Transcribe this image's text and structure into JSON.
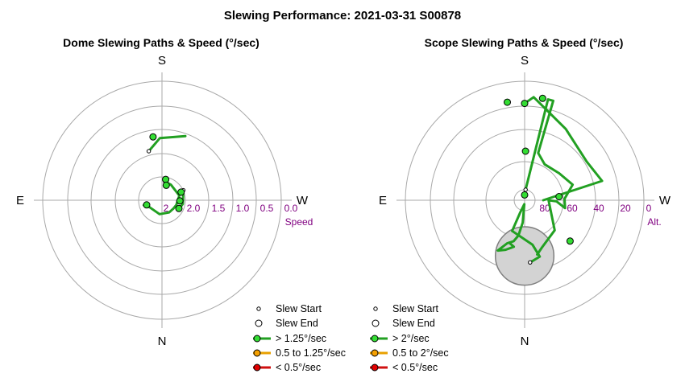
{
  "title": "Slewing Performance: 2021-03-31 S00878",
  "chart_data": [
    {
      "type": "polar-path",
      "title": "Dome Slewing Paths & Speed (°/sec)",
      "directions": {
        "top": "S",
        "bottom": "N",
        "left": "E",
        "right": "W"
      },
      "radial_ticks": [
        "2",
        "2.0",
        "1.5",
        "1.0",
        "0.5",
        "0.0"
      ],
      "radial_label": "Speed",
      "legend": [
        "Slew Start",
        "Slew End",
        "> 1.25°/sec",
        "0.5 to 1.25°/sec",
        "< 0.5°/sec"
      ],
      "speed_colors": {
        "fast": "#22a022",
        "medium": "#e8a000",
        "slow": "#d01010"
      },
      "paths": [
        {
          "speed_band": "fast",
          "points": [
            [
              165,
              1.92
            ],
            [
              178,
              1.68
            ],
            [
              200,
              1.55
            ]
          ]
        },
        {
          "speed_band": "fast",
          "points": [
            [
              190,
              2.6
            ],
            [
              210,
              2.62
            ],
            [
              255,
              2.62
            ],
            [
              288,
              2.68
            ],
            [
              305,
              2.7
            ],
            [
              330,
              2.7
            ],
            [
              10,
              2.7
            ],
            [
              60,
              2.7
            ],
            [
              75,
              2.6
            ]
          ]
        },
        {
          "speed_band": "fast",
          "points": [
            [
              245,
              2.5
            ],
            [
              280,
              2.55
            ],
            [
              300,
              2.6
            ]
          ]
        }
      ],
      "markers": [
        [
          172,
          1.64
        ],
        [
          190,
          2.55
        ],
        [
          196,
          2.67
        ],
        [
          247,
          2.56
        ],
        [
          272,
          2.62
        ],
        [
          296,
          2.6
        ],
        [
          73,
          2.66
        ]
      ]
    },
    {
      "type": "polar-path",
      "title": "Scope Slewing Paths & Speed (°/sec)",
      "directions": {
        "top": "S",
        "bottom": "N",
        "left": "E",
        "right": "W"
      },
      "radial_ticks": [
        "80",
        "60",
        "40",
        "20",
        "0"
      ],
      "radial_label": "Alt.",
      "legend": [
        "Slew Start",
        "Slew End",
        "> 2°/sec",
        "0.5 to 2°/sec",
        "< 0.5°/sec"
      ],
      "speed_colors": {
        "fast": "#22a022",
        "medium": "#e8a000",
        "slow": "#d01010"
      },
      "exclusion_zone": {
        "az_center": 0,
        "alt_center": 48,
        "alt_radius": 22
      },
      "paths": [
        {
          "speed_band": "fast",
          "points": [
            [
              355,
              43
            ],
            [
              345,
              46
            ],
            [
              350,
              56
            ],
            [
              22,
              65
            ],
            [
              20,
              80
            ],
            [
              5,
              87
            ],
            [
              5,
              73
            ],
            [
              10,
              63
            ],
            [
              15,
              58
            ],
            [
              22,
              55
            ],
            [
              28,
              47
            ],
            [
              21,
              50
            ],
            [
              13,
              54
            ],
            [
              20,
              56
            ]
          ]
        },
        {
          "speed_band": "fast",
          "points": [
            [
              185,
              82
            ],
            [
              193,
              12
            ],
            [
              196,
              12
            ],
            [
              196,
              53
            ],
            [
              209,
              59
            ],
            [
              232,
              57
            ],
            [
              252,
              52
            ],
            [
              268,
              60
            ],
            [
              281,
              59
            ],
            [
              272,
              66
            ],
            [
              270,
              72
            ],
            [
              315,
              58
            ],
            [
              340,
              52
            ],
            [
              347,
              48
            ]
          ]
        },
        {
          "speed_band": "fast",
          "points": [
            [
              180,
              17
            ],
            [
              185,
              12
            ],
            [
              210,
              28
            ],
            [
              238,
              35
            ],
            [
              256,
              30
            ],
            [
              270,
              76
            ]
          ]
        }
      ],
      "markers": [
        [
          180,
          17
        ],
        [
          190,
          12
        ],
        [
          170,
          15
        ],
        [
          181,
          53
        ],
        [
          180,
          86
        ],
        [
          264,
          64
        ],
        [
          312,
          44
        ]
      ]
    }
  ]
}
